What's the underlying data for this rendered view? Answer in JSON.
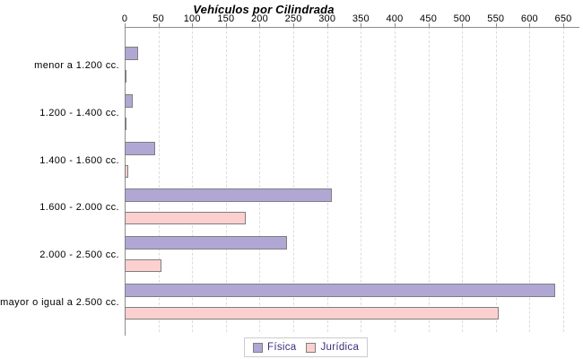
{
  "title": "Vehículos por Cilindrada",
  "chart_data": {
    "type": "bar",
    "orientation": "horizontal",
    "title": "Vehículos por Cilindrada",
    "categories": [
      "menor a 1.200 cc.",
      "1.200 - 1.400 cc.",
      "1.400 - 1.600 cc.",
      "1.600 - 2.000 cc.",
      "2.000 - 2.500 cc.",
      "mayor o igual a 2.500 cc."
    ],
    "series": [
      {
        "name": "Física",
        "color": "#b1a7d4",
        "values": [
          20,
          12,
          45,
          307,
          240,
          638
        ]
      },
      {
        "name": "Jurídica",
        "color": "#fcd0ce",
        "values": [
          1,
          3,
          5,
          180,
          54,
          554
        ]
      }
    ],
    "xlim": [
      0,
      650
    ],
    "tick_step": 50,
    "tick_labels": [
      "0",
      "50",
      "100",
      "150",
      "200",
      "250",
      "300",
      "350",
      "400",
      "450",
      "500",
      "550",
      "600",
      "650"
    ],
    "grid": "vertical-dashed",
    "axis_position": "top",
    "legend_position": "bottom-center",
    "colors": {
      "fisica_fill": "#b1a7d4",
      "juridica_fill": "#fcd0ce",
      "bar_border": "#7f7f7f",
      "axis_line": "#8c8c8c",
      "grid_line": "#dcdcdc",
      "legend_text": "#3b2d7d",
      "legend_border": "#cccccc",
      "title_text": "#000000",
      "background": "#ffffff"
    }
  }
}
